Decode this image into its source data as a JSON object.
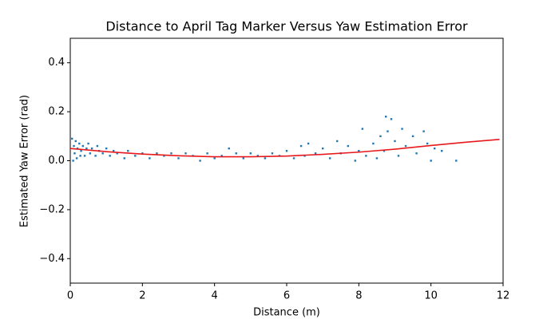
{
  "chart_data": {
    "type": "scatter",
    "title": "Distance to April Tag Marker Versus Yaw Estimation Error",
    "xlabel": "Distance (m)",
    "ylabel": "Estimated Yaw Error (rad)",
    "xlim": [
      0,
      12
    ],
    "ylim": [
      -0.5,
      0.5
    ],
    "xticks": [
      0,
      2,
      4,
      6,
      8,
      10,
      12
    ],
    "yticks": [
      {
        "value": -0.4,
        "label": "−0.4"
      },
      {
        "value": -0.2,
        "label": "−0.2"
      },
      {
        "value": 0,
        "label": "0.0"
      },
      0.2,
      0.4
    ],
    "grid": false,
    "series": [
      {
        "type": "scatter",
        "color": "#1f77b4",
        "x": [
          0.05,
          0.08,
          0.1,
          0.12,
          0.15,
          0.18,
          0.2,
          0.25,
          0.28,
          0.3,
          0.35,
          0.4,
          0.45,
          0.5,
          0.55,
          0.6,
          0.7,
          0.75,
          0.8,
          0.9,
          1.0,
          1.1,
          1.2,
          1.3,
          1.5,
          1.6,
          1.8,
          2.0,
          2.2,
          2.4,
          2.6,
          2.8,
          3.0,
          3.2,
          3.4,
          3.6,
          3.8,
          4.0,
          4.2,
          4.4,
          4.6,
          4.8,
          5.0,
          5.2,
          5.4,
          5.6,
          5.8,
          6.0,
          6.2,
          6.4,
          6.5,
          6.6,
          6.8,
          7.0,
          7.2,
          7.4,
          7.5,
          7.7,
          7.9,
          8.0,
          8.1,
          8.2,
          8.4,
          8.5,
          8.6,
          8.7,
          8.75,
          8.8,
          8.9,
          9.0,
          9.1,
          9.2,
          9.3,
          9.5,
          9.6,
          9.8,
          9.9,
          10.0,
          10.1,
          10.3,
          10.7
        ],
        "values": [
          0.09,
          0.0,
          0.06,
          0.03,
          0.08,
          0.01,
          0.05,
          0.07,
          0.02,
          0.04,
          0.06,
          0.02,
          0.05,
          0.07,
          0.03,
          0.05,
          0.02,
          0.06,
          0.04,
          0.03,
          0.05,
          0.02,
          0.04,
          0.03,
          0.01,
          0.04,
          0.02,
          0.03,
          0.01,
          0.03,
          0.02,
          0.03,
          0.01,
          0.03,
          0.02,
          0.0,
          0.03,
          0.01,
          0.02,
          0.05,
          0.03,
          0.01,
          0.03,
          0.02,
          0.01,
          0.03,
          0.02,
          0.04,
          0.01,
          0.06,
          0.02,
          0.07,
          0.03,
          0.05,
          0.01,
          0.08,
          0.03,
          0.06,
          0.0,
          0.04,
          0.13,
          0.02,
          0.07,
          0.01,
          0.1,
          0.04,
          0.18,
          0.12,
          0.17,
          0.08,
          0.02,
          0.13,
          0.06,
          0.1,
          0.03,
          0.12,
          0.07,
          0.0,
          0.05,
          0.04,
          0.0
        ]
      },
      {
        "type": "line",
        "color": "#e8191c",
        "x": [
          0,
          1,
          2,
          3,
          4,
          5,
          6,
          7,
          8,
          9,
          10,
          11,
          11.9
        ],
        "values": [
          0.05,
          0.037,
          0.027,
          0.02,
          0.016,
          0.016,
          0.019,
          0.026,
          0.035,
          0.047,
          0.062,
          0.076,
          0.087
        ]
      }
    ]
  }
}
